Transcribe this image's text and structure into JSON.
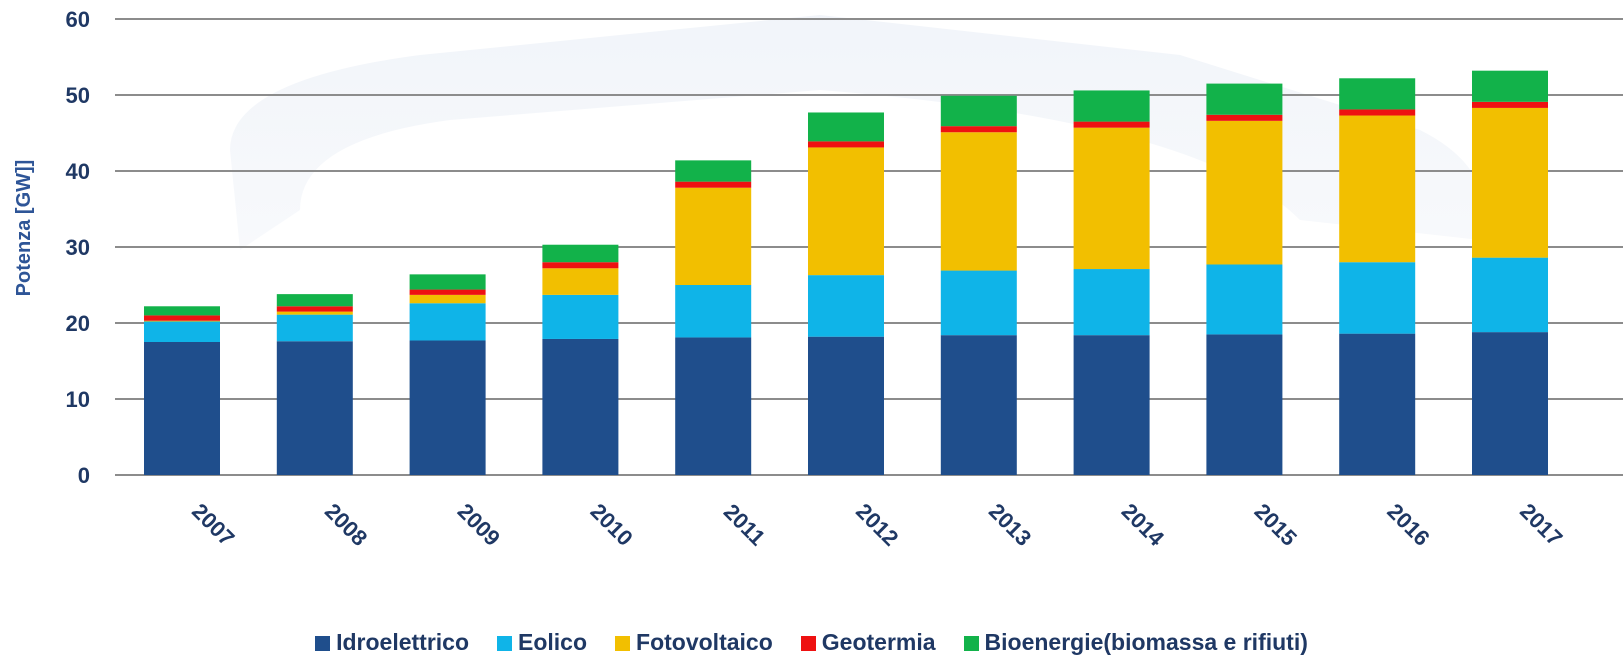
{
  "chart_data": {
    "type": "bar",
    "stacked": true,
    "ylabel": "Potenza [GW]]",
    "xlabel": "",
    "ylim": [
      0,
      60
    ],
    "yticks": [
      0,
      10,
      20,
      30,
      40,
      50,
      60
    ],
    "grid": true,
    "legend_position": "bottom",
    "categories": [
      "2007",
      "2008",
      "2009",
      "2010",
      "2011",
      "2012",
      "2013",
      "2014",
      "2015",
      "2016",
      "2017"
    ],
    "series": [
      {
        "name": "Idroelettrico",
        "color": "#1f4e8c",
        "values": [
          17.5,
          17.6,
          17.7,
          17.9,
          18.1,
          18.2,
          18.4,
          18.4,
          18.5,
          18.6,
          18.8
        ]
      },
      {
        "name": "Eolico",
        "color": "#0fb4e8",
        "values": [
          2.7,
          3.5,
          4.9,
          5.8,
          6.9,
          8.1,
          8.5,
          8.7,
          9.2,
          9.4,
          9.8
        ]
      },
      {
        "name": "Fotovoltaico",
        "color": "#f2bf00",
        "values": [
          0.1,
          0.4,
          1.1,
          3.5,
          12.8,
          16.8,
          18.2,
          18.6,
          18.9,
          19.3,
          19.7
        ]
      },
      {
        "name": "Geotermia",
        "color": "#ee1111",
        "values": [
          0.7,
          0.7,
          0.7,
          0.8,
          0.8,
          0.8,
          0.8,
          0.8,
          0.8,
          0.8,
          0.8
        ]
      },
      {
        "name": "Bioenergie(biomassa e rifiuti)",
        "color": "#12b24a",
        "values": [
          1.2,
          1.6,
          2.0,
          2.3,
          2.8,
          3.8,
          4.0,
          4.1,
          4.1,
          4.1,
          4.1
        ]
      }
    ]
  }
}
